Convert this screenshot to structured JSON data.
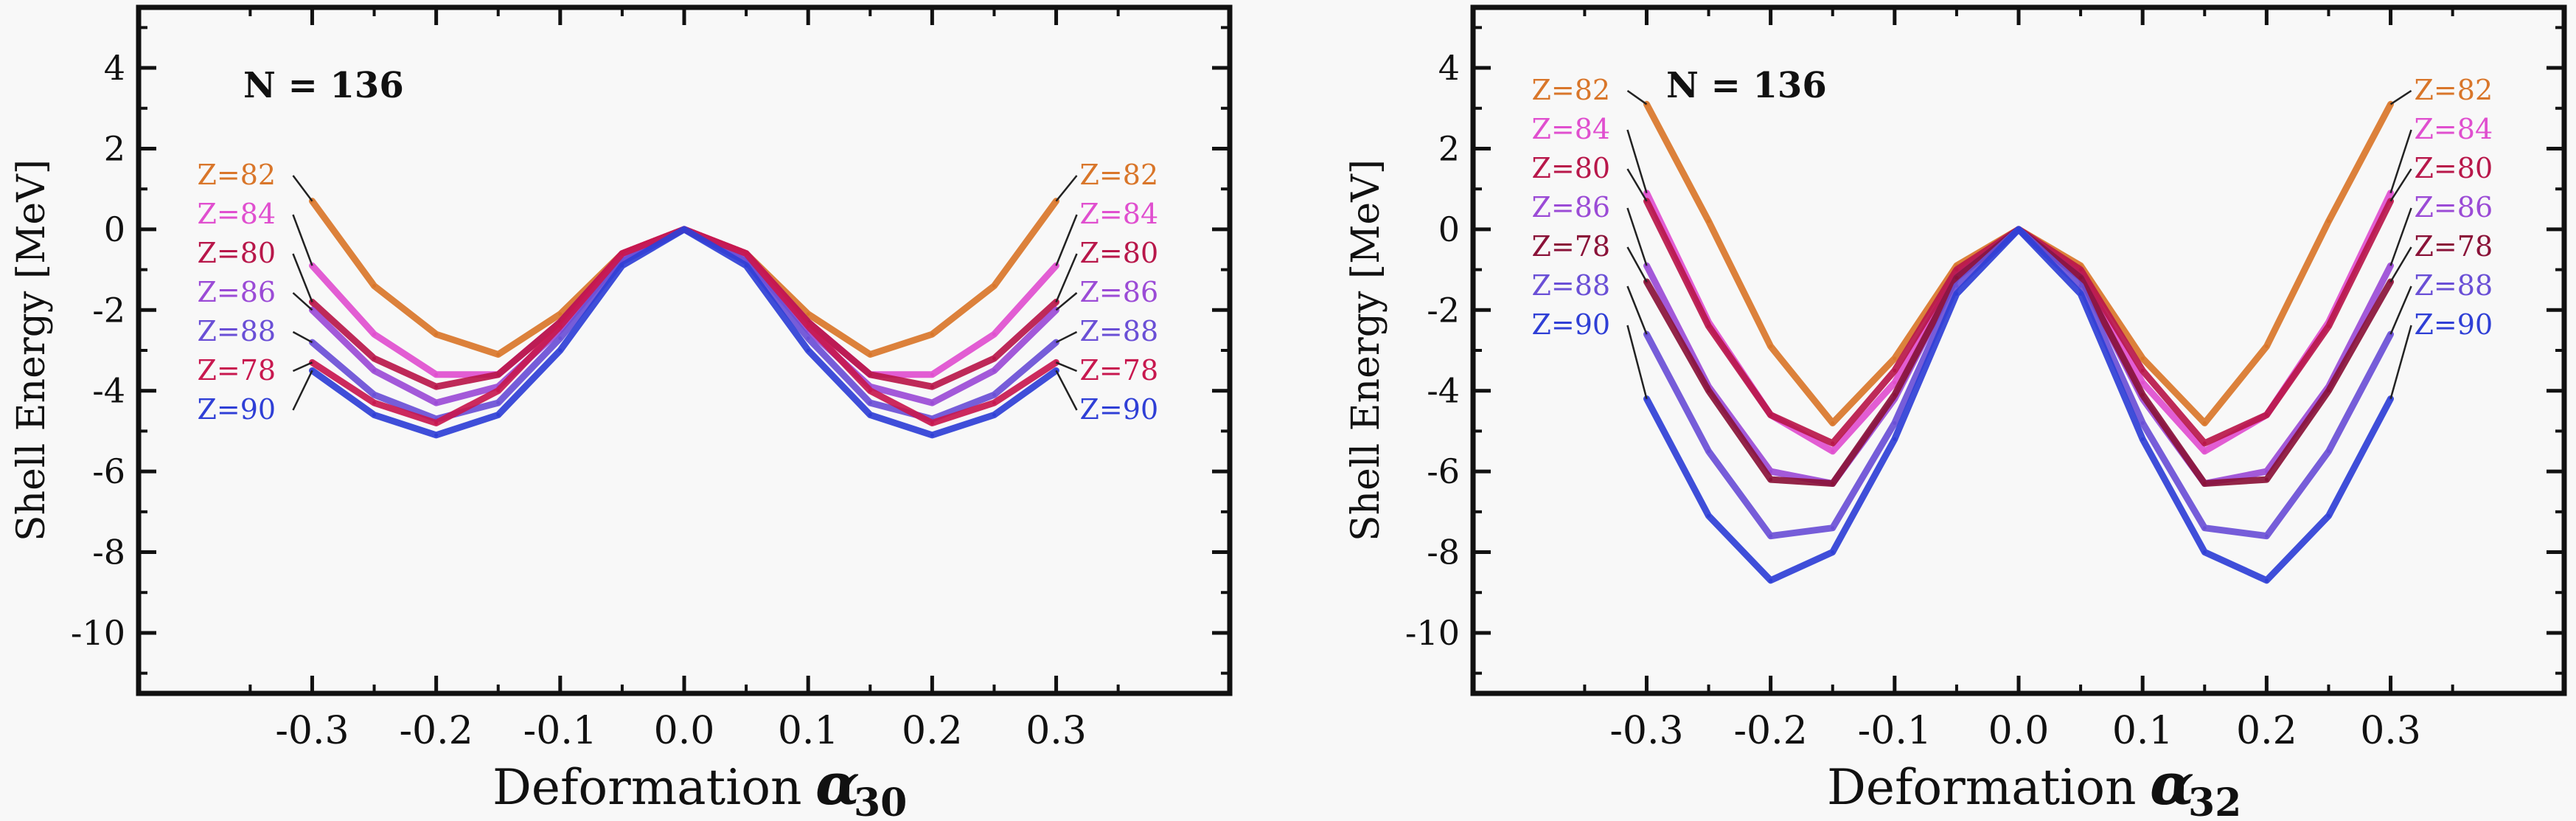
{
  "chart_data": [
    {
      "type": "line",
      "annotation": "N = 136",
      "ylabel": "Shell Energy [MeV]",
      "xlabel": "Deformation",
      "xlabel_symbol": "α",
      "xlabel_subscript": "30",
      "xlim": [
        -0.44,
        0.44
      ],
      "ylim": [
        -11.5,
        5.5
      ],
      "xticks": [
        "-0.3",
        "-0.2",
        "-0.1",
        "0.0",
        "0.1",
        "0.2",
        "0.3"
      ],
      "yticks": [
        "4",
        "2",
        "0",
        "-2",
        "-4",
        "-6",
        "-8",
        "-10"
      ],
      "x": [
        -0.3,
        -0.25,
        -0.2,
        -0.15,
        -0.1,
        -0.05,
        0.0,
        0.05,
        0.1,
        0.15,
        0.2,
        0.25,
        0.3
      ],
      "series": [
        {
          "name": "Z=82",
          "color": "#d9762a",
          "values": [
            0.7,
            -1.4,
            -2.6,
            -3.1,
            -2.1,
            -0.6,
            0.0,
            -0.6,
            -2.1,
            -3.1,
            -2.6,
            -1.4,
            0.7
          ]
        },
        {
          "name": "Z=84",
          "color": "#e04fcf",
          "values": [
            -0.9,
            -2.6,
            -3.6,
            -3.6,
            -2.3,
            -0.6,
            0.0,
            -0.6,
            -2.3,
            -3.6,
            -3.6,
            -2.6,
            -0.9
          ]
        },
        {
          "name": "Z=80",
          "color": "#b8174a",
          "values": [
            -1.8,
            -3.2,
            -3.9,
            -3.6,
            -2.3,
            -0.6,
            0.0,
            -0.6,
            -2.3,
            -3.6,
            -3.9,
            -3.2,
            -1.8
          ]
        },
        {
          "name": "Z=86",
          "color": "#9b4bd6",
          "values": [
            -2.0,
            -3.5,
            -4.3,
            -3.9,
            -2.5,
            -0.7,
            0.0,
            -0.7,
            -2.5,
            -3.9,
            -4.3,
            -3.5,
            -2.0
          ]
        },
        {
          "name": "Z=88",
          "color": "#6a4fd6",
          "values": [
            -2.8,
            -4.1,
            -4.7,
            -4.3,
            -2.7,
            -0.8,
            0.0,
            -0.8,
            -2.7,
            -4.3,
            -4.7,
            -4.1,
            -2.8
          ]
        },
        {
          "name": "Z=78",
          "color": "#c8184f",
          "values": [
            -3.3,
            -4.3,
            -4.8,
            -4.0,
            -2.4,
            -0.6,
            0.0,
            -0.6,
            -2.4,
            -4.0,
            -4.8,
            -4.3,
            -3.3
          ]
        },
        {
          "name": "Z=90",
          "color": "#2f3fd6",
          "values": [
            -3.5,
            -4.6,
            -5.1,
            -4.6,
            -3.0,
            -0.9,
            0.0,
            -0.9,
            -3.0,
            -4.6,
            -5.1,
            -4.6,
            -3.5
          ]
        }
      ],
      "left_labels": [
        "Z=82",
        "Z=84",
        "Z=80",
        "Z=86",
        "Z=88",
        "Z=78",
        "Z=90"
      ],
      "right_labels": [
        "Z=82",
        "Z=84",
        "Z=80",
        "Z=86",
        "Z=88",
        "Z=78",
        "Z=90"
      ]
    },
    {
      "type": "line",
      "annotation": "N = 136",
      "ylabel": "Shell Energy [MeV]",
      "xlabel": "Deformation",
      "xlabel_symbol": "α",
      "xlabel_subscript": "32",
      "xlim": [
        -0.44,
        0.44
      ],
      "ylim": [
        -11.5,
        5.5
      ],
      "xticks": [
        "-0.3",
        "-0.2",
        "-0.1",
        "0.0",
        "0.1",
        "0.2",
        "0.3"
      ],
      "yticks": [
        "4",
        "2",
        "0",
        "-2",
        "-4",
        "-6",
        "-8",
        "-10"
      ],
      "x": [
        -0.3,
        -0.25,
        -0.2,
        -0.15,
        -0.1,
        -0.05,
        0.0,
        0.05,
        0.1,
        0.15,
        0.2,
        0.25,
        0.3
      ],
      "series": [
        {
          "name": "Z=82",
          "color": "#d9762a",
          "values": [
            3.1,
            0.2,
            -2.9,
            -4.8,
            -3.2,
            -0.9,
            0.0,
            -0.9,
            -3.2,
            -4.8,
            -2.9,
            0.2,
            3.1
          ]
        },
        {
          "name": "Z=84",
          "color": "#e04fcf",
          "values": [
            0.9,
            -2.3,
            -4.6,
            -5.5,
            -3.8,
            -1.1,
            0.0,
            -1.1,
            -3.8,
            -5.5,
            -4.6,
            -2.3,
            0.9
          ]
        },
        {
          "name": "Z=80",
          "color": "#b8174a",
          "values": [
            0.7,
            -2.4,
            -4.6,
            -5.3,
            -3.5,
            -1.0,
            0.0,
            -1.0,
            -3.5,
            -5.3,
            -4.6,
            -2.4,
            0.7
          ]
        },
        {
          "name": "Z=86",
          "color": "#9b4bd6",
          "values": [
            -0.9,
            -3.9,
            -6.0,
            -6.3,
            -4.2,
            -1.2,
            0.0,
            -1.2,
            -4.2,
            -6.3,
            -6.0,
            -3.9,
            -0.9
          ]
        },
        {
          "name": "Z=78",
          "color": "#8a1238",
          "values": [
            -1.3,
            -4.0,
            -6.2,
            -6.3,
            -4.1,
            -1.2,
            0.0,
            -1.2,
            -4.1,
            -6.3,
            -6.2,
            -4.0,
            -1.3
          ]
        },
        {
          "name": "Z=88",
          "color": "#6a4fd6",
          "values": [
            -2.6,
            -5.5,
            -7.6,
            -7.4,
            -4.8,
            -1.4,
            0.0,
            -1.4,
            -4.8,
            -7.4,
            -7.6,
            -5.5,
            -2.6
          ]
        },
        {
          "name": "Z=90",
          "color": "#2f3fd6",
          "values": [
            -4.2,
            -7.1,
            -8.7,
            -8.0,
            -5.2,
            -1.6,
            0.0,
            -1.6,
            -5.2,
            -8.0,
            -8.7,
            -7.1,
            -4.2
          ]
        }
      ],
      "left_labels": [
        "Z=82",
        "Z=84",
        "Z=80",
        "Z=86",
        "Z=78",
        "Z=88",
        "Z=90"
      ],
      "right_labels": [
        "Z=82",
        "Z=84",
        "Z=80",
        "Z=86",
        "Z=78",
        "Z=88",
        "Z=90"
      ]
    }
  ]
}
